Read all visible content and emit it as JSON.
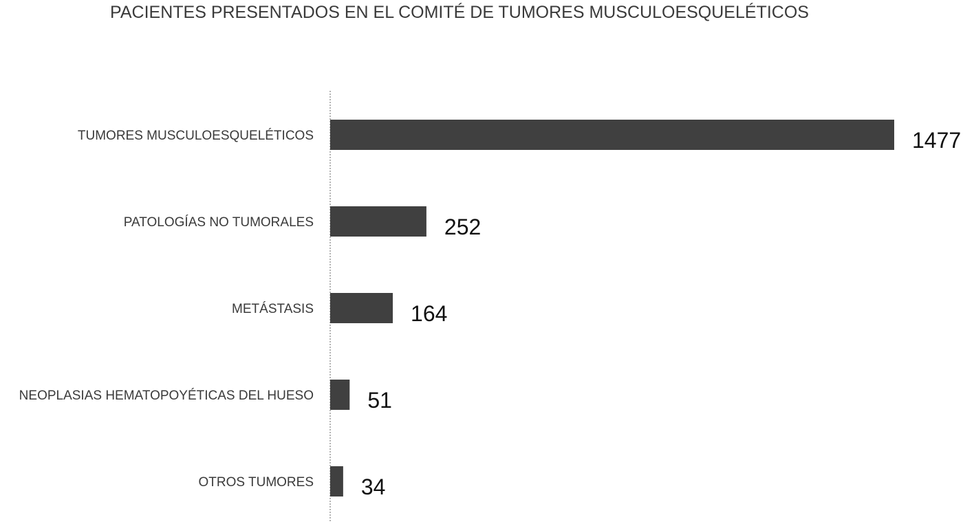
{
  "chart_data": {
    "type": "bar",
    "orientation": "horizontal",
    "title": "PACIENTES PRESENTADOS EN EL COMITÉ DE TUMORES MUSCULOESQUELÉTICOS",
    "categories": [
      "TUMORES MUSCULOESQUELÉTICOS",
      "PATOLOGÍAS NO TUMORALES",
      "METÁSTASIS",
      "NEOPLASIAS HEMATOPOYÉTICAS DEL HUESO",
      "OTROS TUMORES"
    ],
    "values": [
      1477,
      252,
      164,
      51,
      34
    ],
    "data_labels": [
      "1477",
      "252",
      "164",
      "51",
      "34"
    ],
    "xlim": [
      0,
      1477
    ],
    "grid": false,
    "legend": "none",
    "bar_color": "#404040"
  }
}
